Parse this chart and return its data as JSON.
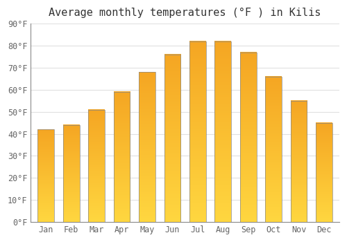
{
  "title": "Average monthly temperatures (°F ) in Kilis",
  "months": [
    "Jan",
    "Feb",
    "Mar",
    "Apr",
    "May",
    "Jun",
    "Jul",
    "Aug",
    "Sep",
    "Oct",
    "Nov",
    "Dec"
  ],
  "values": [
    42,
    44,
    51,
    59,
    68,
    76,
    82,
    82,
    77,
    66,
    55,
    45
  ],
  "bar_color_top": "#F5A623",
  "bar_color_bottom": "#FFD740",
  "bar_edge_color": "#888888",
  "ylim": [
    0,
    90
  ],
  "yticks": [
    0,
    10,
    20,
    30,
    40,
    50,
    60,
    70,
    80,
    90
  ],
  "ylabel_suffix": "°F",
  "background_color": "#ffffff",
  "plot_background": "#ffffff",
  "title_fontsize": 11,
  "tick_fontsize": 8.5,
  "grid_color": "#e0e0e0",
  "bar_width": 0.65
}
